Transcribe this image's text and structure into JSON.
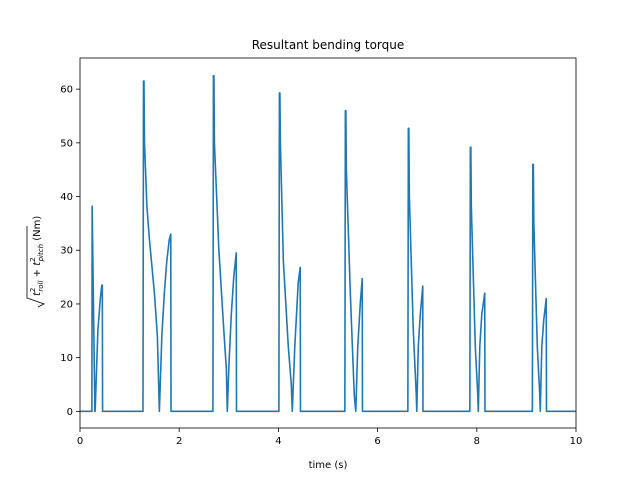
{
  "chart_data": {
    "type": "line",
    "title": "Resultant bending torque",
    "xlabel": "time (s)",
    "ylabel_root": "√",
    "ylabel_inner": "t²roll + t²pitch",
    "ylabel_unit": "(Nm)",
    "ylabel_parts": {
      "t1": "t",
      "sup1": "2",
      "sub1": "roll",
      "plus": " + ",
      "t2": "t",
      "sup2": "2",
      "sub2": "pitch",
      "unit": " (Nm)"
    },
    "xlim": [
      0,
      10
    ],
    "ylim": [
      -3.1,
      65.8
    ],
    "xticks": [
      0,
      2,
      4,
      6,
      8,
      10
    ],
    "xtick_labels": [
      "0",
      "2",
      "4",
      "6",
      "8",
      "10"
    ],
    "yticks": [
      0,
      10,
      20,
      30,
      40,
      50,
      60
    ],
    "ytick_labels": [
      "0",
      "10",
      "20",
      "30",
      "40",
      "50",
      "60"
    ],
    "grid": false,
    "series": [
      {
        "color": "#1f77b4",
        "x": [
          0,
          0.24,
          0.245,
          0.3,
          0.305,
          0.36,
          0.41,
          0.44,
          0.45,
          0.455,
          0.46,
          1.27,
          1.28,
          1.29,
          1.3,
          1.35,
          1.4,
          1.45,
          1.5,
          1.56,
          1.6,
          1.65,
          1.7,
          1.75,
          1.8,
          1.83,
          1.835,
          2.68,
          2.69,
          2.7,
          2.71,
          2.8,
          2.9,
          2.95,
          2.97,
          3.0,
          3.05,
          3.1,
          3.15,
          3.155,
          4.01,
          4.02,
          4.03,
          4.04,
          4.1,
          4.2,
          4.26,
          4.28,
          4.33,
          4.4,
          4.44,
          4.445,
          5.34,
          5.35,
          5.36,
          5.37,
          5.45,
          5.5,
          5.53,
          5.56,
          5.6,
          5.65,
          5.69,
          5.695,
          6.61,
          6.62,
          6.63,
          6.64,
          6.72,
          6.78,
          6.79,
          6.82,
          6.86,
          6.91,
          6.915,
          7.86,
          7.87,
          7.88,
          7.89,
          7.97,
          8.02,
          8.03,
          8.06,
          8.1,
          8.16,
          8.165,
          9.12,
          9.13,
          9.14,
          9.15,
          9.22,
          9.27,
          9.28,
          9.31,
          9.35,
          9.4,
          9.405,
          10
        ],
        "y": [
          0,
          0,
          38.2,
          0,
          0,
          15,
          21,
          23.5,
          23.5,
          0,
          0,
          0,
          61.5,
          61.5,
          50,
          38,
          32,
          27,
          22,
          14,
          0,
          14,
          22,
          28,
          32,
          33,
          0,
          0,
          62.5,
          62.5,
          50,
          30,
          15,
          8,
          0,
          8,
          18,
          25,
          29.5,
          0,
          0,
          59.3,
          59.3,
          50,
          28,
          12,
          5,
          0,
          12,
          24,
          26.8,
          0,
          0,
          56,
          56,
          45,
          22,
          10,
          3,
          0,
          12,
          20,
          24.7,
          0,
          0,
          52.7,
          52.7,
          40,
          15,
          3,
          0,
          12,
          18,
          23.3,
          0,
          0,
          49.2,
          49.2,
          38,
          12,
          3,
          0,
          12,
          18,
          22,
          0,
          0,
          46,
          46,
          35,
          12,
          3,
          0,
          12,
          17,
          21,
          0,
          0
        ]
      }
    ]
  }
}
